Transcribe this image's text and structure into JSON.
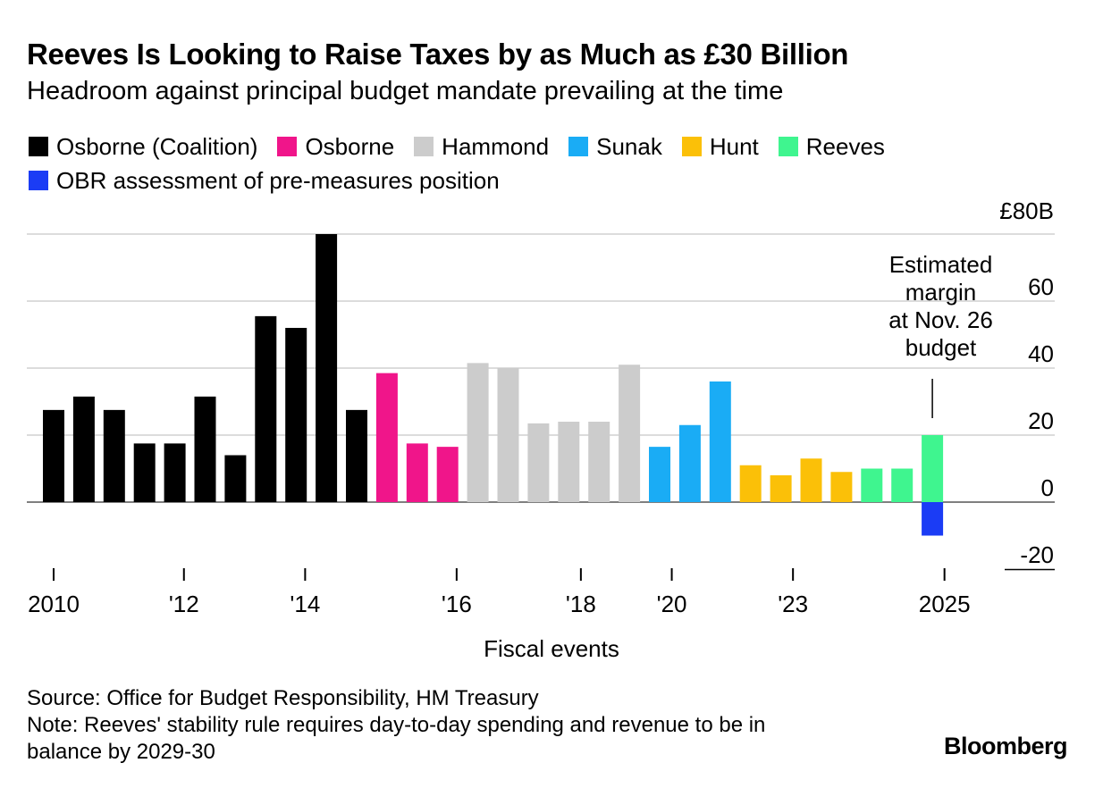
{
  "chart_data": {
    "type": "bar",
    "title": "Reeves Is Looking to Raise Taxes by as Much as £30 Billion",
    "subtitle": "Headroom against principal budget mandate prevailing at the time",
    "xlabel": "Fiscal events",
    "ylabel": "",
    "ylim": [
      -20,
      80
    ],
    "yticks": [
      {
        "value": 80,
        "label": "£80B"
      },
      {
        "value": 60,
        "label": "60"
      },
      {
        "value": 40,
        "label": "40"
      },
      {
        "value": 20,
        "label": "20"
      },
      {
        "value": 0,
        "label": "0"
      },
      {
        "value": -20,
        "label": "-20"
      }
    ],
    "xticks": [
      {
        "index": 0,
        "label": "2010"
      },
      {
        "index": 4.3,
        "label": "'12"
      },
      {
        "index": 8.3,
        "label": "'14"
      },
      {
        "index": 13.3,
        "label": "'16"
      },
      {
        "index": 17.4,
        "label": "'18"
      },
      {
        "index": 20.4,
        "label": "'20"
      },
      {
        "index": 24.4,
        "label": "'23"
      },
      {
        "index": 29.4,
        "label": "2025"
      }
    ],
    "legend": [
      {
        "name": "Osborne (Coalition)",
        "color": "#000000"
      },
      {
        "name": "Osborne",
        "color": "#f0158a"
      },
      {
        "name": "Hammond",
        "color": "#cccccc"
      },
      {
        "name": "Sunak",
        "color": "#1aacf5"
      },
      {
        "name": "Hunt",
        "color": "#fbc008"
      },
      {
        "name": "Reeves",
        "color": "#3ff58f"
      },
      {
        "name": "OBR assessment of pre-measures position",
        "color": "#1b3cf5"
      }
    ],
    "series": [
      {
        "name": "Osborne (Coalition)",
        "color": "#000000",
        "points": [
          [
            0,
            27.5
          ],
          [
            1,
            31.5
          ],
          [
            2,
            27.5
          ],
          [
            3,
            17.5
          ],
          [
            4,
            17.5
          ],
          [
            5,
            31.5
          ],
          [
            6,
            14
          ],
          [
            7,
            55.5
          ],
          [
            8,
            52
          ],
          [
            9,
            80
          ],
          [
            10,
            27.5
          ]
        ]
      },
      {
        "name": "Osborne",
        "color": "#f0158a",
        "points": [
          [
            11,
            38.5
          ],
          [
            12,
            17.5
          ],
          [
            13,
            16.5
          ]
        ]
      },
      {
        "name": "Hammond",
        "color": "#cccccc",
        "points": [
          [
            14,
            41.5
          ],
          [
            15,
            40
          ],
          [
            16,
            23.5
          ],
          [
            17,
            24
          ],
          [
            18,
            24
          ],
          [
            19,
            41
          ]
        ]
      },
      {
        "name": "Sunak",
        "color": "#1aacf5",
        "points": [
          [
            20,
            16.5
          ],
          [
            21,
            23
          ],
          [
            22,
            36
          ]
        ]
      },
      {
        "name": "Hunt",
        "color": "#fbc008",
        "points": [
          [
            23,
            11
          ],
          [
            24,
            8
          ],
          [
            25,
            13
          ],
          [
            26,
            9
          ]
        ]
      },
      {
        "name": "Reeves",
        "color": "#3ff58f",
        "points": [
          [
            27,
            10
          ],
          [
            28,
            10
          ],
          [
            29,
            20
          ]
        ]
      },
      {
        "name": "OBR assessment of pre-measures position",
        "color": "#1b3cf5",
        "points": [
          [
            29,
            -10
          ]
        ]
      }
    ],
    "annotation": {
      "text": "Estimated margin at Nov. 26 budget",
      "lines": [
        "Estimated",
        "margin",
        "at Nov. 26",
        "budget"
      ],
      "index": 29
    }
  },
  "source": "Source: Office for Budget Responsibility, HM Treasury",
  "note": "Note: Reeves' stability rule requires day-to-day spending and revenue to be in balance by 2029-30",
  "note_lines": [
    "Note: Reeves' stability rule requires day-to-day spending and revenue to be in",
    "balance by 2029-30"
  ],
  "brand": "Bloomberg"
}
